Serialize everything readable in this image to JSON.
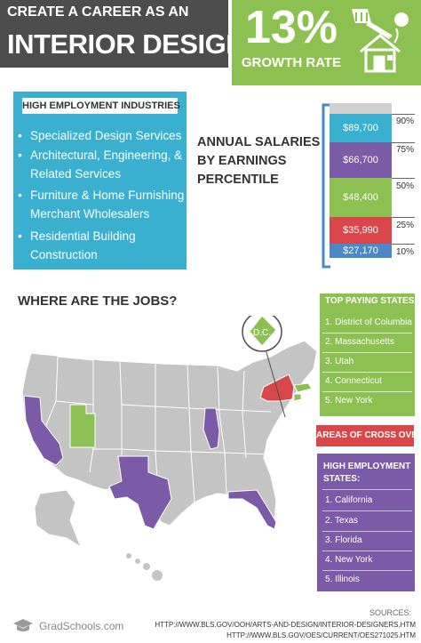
{
  "header": {
    "line1": "CREATE A CAREER AS AN",
    "line2": "INTERIOR DESIGNER",
    "growth_percent": "13%",
    "growth_label": "GROWTH RATE"
  },
  "industries": {
    "title": "HIGH EMPLOYMENT INDUSTRIES",
    "items": [
      {
        "bullet": "•",
        "text": "Specialized Design Services"
      },
      {
        "bullet": "•",
        "text": "Architectural, Engineering, & Related Services"
      },
      {
        "bullet": "•",
        "text": "Furniture & Home Furnishing Merchant Wholesalers"
      },
      {
        "bullet": "•",
        "text": "Residential Building Construction"
      }
    ]
  },
  "salaries": {
    "title": "ANNUAL SALARIES BY EARNINGS PERCENTILE",
    "bars": [
      {
        "value": "$89,700",
        "percentile": "90%",
        "color": "#3ab0d0"
      },
      {
        "value": "$66,700",
        "percentile": "75%",
        "color": "#7b5aa8"
      },
      {
        "value": "$48,400",
        "percentile": "50%",
        "color": "#8cc152"
      },
      {
        "value": "$35,990",
        "percentile": "25%",
        "color": "#d9474b"
      },
      {
        "value": "$27,170",
        "percentile": "10%",
        "color": "#4a88c8"
      }
    ]
  },
  "map": {
    "title": "WHERE ARE THE JOBS?",
    "dc_label": "D.C."
  },
  "top_paying": {
    "title": "TOP PAYING STATES:",
    "items": [
      "1. District of Columbia",
      "2. Massachusetts",
      "3. Utah",
      "4. Connecticut",
      "5. New York"
    ]
  },
  "cross_over": {
    "label": "AREAS OF CROSS OVER"
  },
  "high_employment": {
    "title": "HIGH EMPLOYMENT STATES:",
    "items": [
      "1. California",
      "2. Texas",
      "3. Florida",
      "4. New York",
      "5. Illinois"
    ]
  },
  "footer": {
    "logo_text": "GradSchools.com",
    "sources_title": "SOURCES:",
    "sources": [
      "HTTP://WWW.BLS.GOV/OOH/ARTS-AND-DESIGN/INTERIOR-DESIGNERS.HTM",
      "HTTP://WWW.BLS.GOV/OES/CURRENT/OES271025.HTM"
    ]
  },
  "colors": {
    "dark": "#4d4d4d",
    "green": "#8cc152",
    "blue": "#3ab0d0",
    "purple": "#7b5aa8",
    "red": "#d9474b",
    "map_gray": "#c4c4c4"
  }
}
